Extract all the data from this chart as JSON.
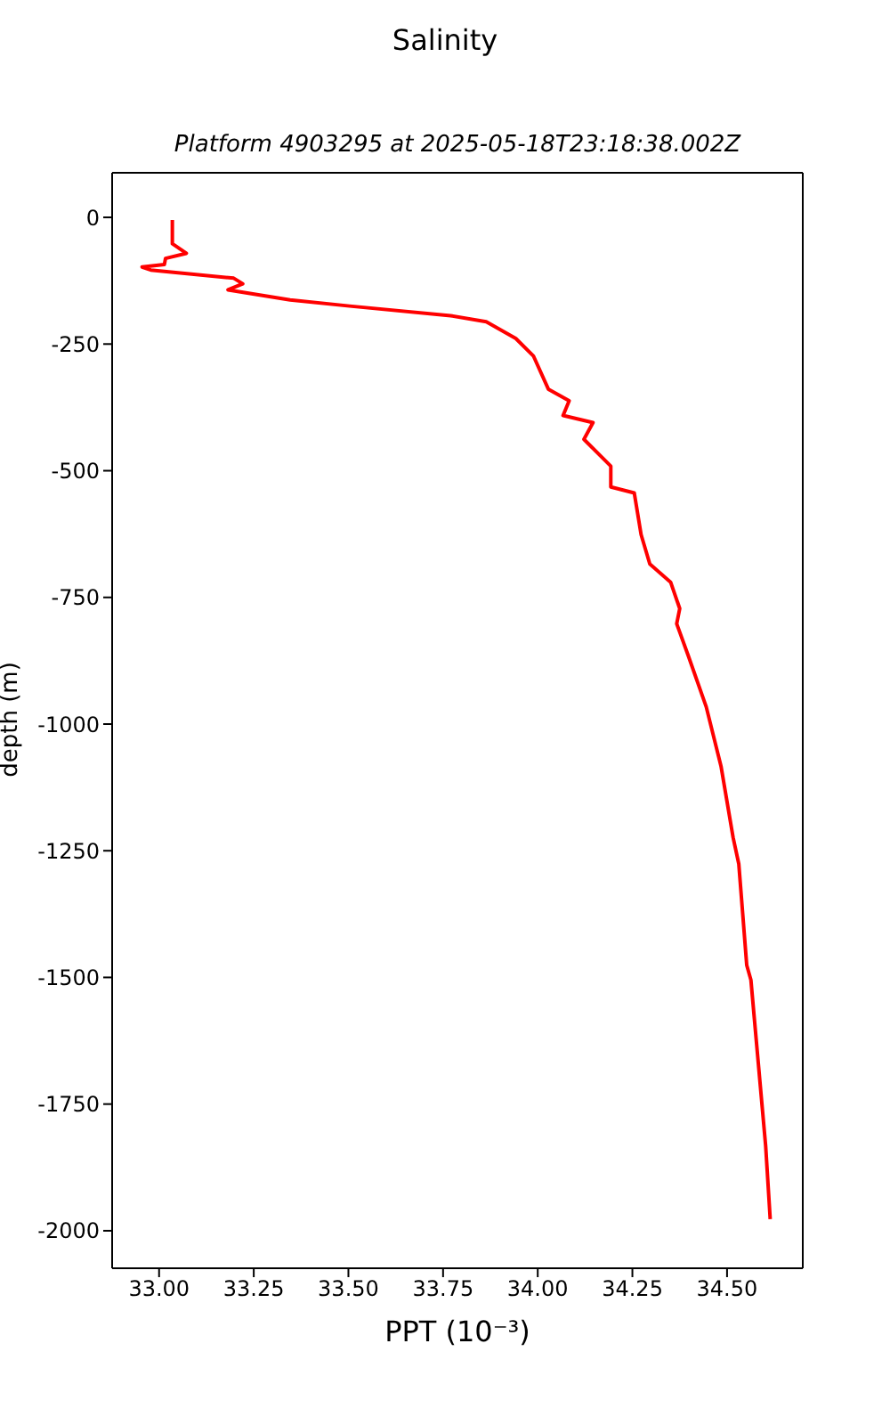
{
  "chart_data": {
    "type": "line",
    "title": "Salinity",
    "subtitle": "Platform 4903295 at 2025-05-18T23:18:38.002Z",
    "xlabel": "PPT (10⁻³)",
    "ylabel": "depth (m)",
    "series": [
      {
        "color": "#ff0000",
        "x": [
          33.035,
          33.035,
          33.072,
          33.017,
          33.014,
          32.955,
          32.978,
          33.197,
          33.221,
          33.182,
          33.346,
          33.503,
          33.77,
          33.864,
          33.942,
          33.989,
          34.028,
          34.083,
          34.067,
          34.146,
          34.122,
          34.193,
          34.193,
          34.255,
          34.273,
          34.296,
          34.351,
          34.375,
          34.367,
          34.398,
          34.445,
          34.484,
          34.516,
          34.531,
          34.552,
          34.563,
          34.602,
          34.614
        ],
        "values": [
          -5,
          -52,
          -71,
          -81,
          -93,
          -98,
          -104,
          -120,
          -131,
          -143,
          -163,
          -175,
          -194,
          -206,
          -239,
          -274,
          -339,
          -362,
          -391,
          -405,
          -438,
          -491,
          -532,
          -544,
          -626,
          -684,
          -720,
          -772,
          -802,
          -866,
          -966,
          -1083,
          -1224,
          -1276,
          -1476,
          -1505,
          -1833,
          -1977
        ]
      }
    ],
    "xlim": [
      32.876,
      34.7
    ],
    "xticks": [
      {
        "value": 33,
        "label": "33.00"
      },
      {
        "value": 33.25,
        "label": "33.25"
      },
      {
        "value": 33.5,
        "label": "33.50"
      },
      {
        "value": 33.75,
        "label": "33.75"
      },
      {
        "value": 34,
        "label": "34.00"
      },
      {
        "value": 34.25,
        "label": "34.25"
      },
      {
        "value": 34.5,
        "label": "34.50"
      }
    ],
    "ylim": [
      -2074,
      88
    ],
    "yticks": [
      0,
      -250,
      -500,
      -750,
      -1000,
      -1250,
      -1500,
      -1750,
      -2000
    ],
    "grid": false,
    "legend": false,
    "marker": "none",
    "line_style": "solid"
  }
}
